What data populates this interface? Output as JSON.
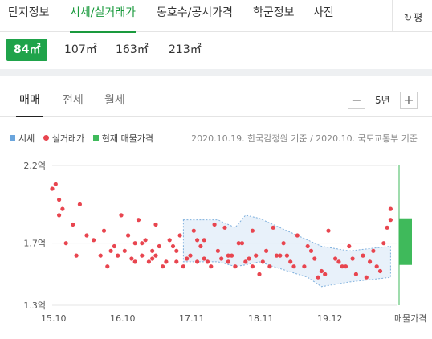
{
  "top_tabs": [
    "단지정보",
    "시세/실거래가",
    "동호수/공시가격",
    "학군정보",
    "사진"
  ],
  "active_top_tab": 1,
  "unit_toggle": "평",
  "areas": [
    "84㎡",
    "107㎡",
    "163㎡",
    "213㎡"
  ],
  "active_area": 0,
  "period_tabs": [
    "매매",
    "전세",
    "월세"
  ],
  "active_period_tab": 0,
  "range": {
    "minus": "−",
    "value": "5년",
    "plus": "+"
  },
  "legend": {
    "market": "시세",
    "actual": "실거래가",
    "listing": "현재 매물가격"
  },
  "source": "2020.10.19. 한국감정원 기준 / 2020.10. 국토교통부 기준",
  "colors": {
    "accent": "#1a9a3d",
    "market_band": "#d8e8f7",
    "market_line": "#7fb0dd",
    "actual_dot": "#e8454f",
    "listing": "#3fba5b"
  },
  "chart_data": {
    "type": "scatter",
    "ylim": [
      1.3,
      2.2
    ],
    "y_ticks": [
      "2.2억",
      "1.7억",
      "1.3억"
    ],
    "x_ticks": [
      "15.10",
      "16.10",
      "17.11",
      "18.11",
      "19.12"
    ],
    "listing_label": "매물가격",
    "listing_range": [
      1.56,
      1.86
    ],
    "market_band": {
      "x": [
        17.7,
        18.2,
        18.45,
        18.6,
        18.8,
        19.0,
        19.5,
        19.7,
        20.1,
        20.7
      ],
      "upper": [
        1.85,
        1.85,
        1.8,
        1.88,
        1.86,
        1.82,
        1.72,
        1.68,
        1.65,
        1.68
      ],
      "lower": [
        1.58,
        1.58,
        1.55,
        1.56,
        1.58,
        1.55,
        1.48,
        1.42,
        1.45,
        1.48
      ]
    },
    "actual_trades": {
      "x": [
        15.8,
        15.85,
        15.9,
        15.95,
        16.1,
        16.2,
        16.4,
        16.55,
        16.65,
        16.75,
        16.8,
        16.9,
        17.0,
        17.05,
        17.1,
        17.15,
        17.25,
        17.3,
        17.35,
        17.45,
        17.5,
        17.6,
        17.65,
        17.7,
        17.8,
        17.85,
        17.9,
        17.95,
        18.0,
        18.1,
        18.15,
        18.25,
        18.3,
        18.35,
        18.45,
        18.55,
        18.6,
        18.7,
        18.75,
        18.8,
        18.9,
        18.95,
        19.0,
        19.05,
        19.15,
        19.25,
        19.35,
        19.45,
        19.5,
        19.6,
        19.7,
        19.8,
        19.9,
        20.0,
        20.1,
        20.2,
        20.3,
        20.4,
        20.5,
        20.6,
        20.7,
        15.9,
        16.0,
        16.3,
        16.5,
        16.7,
        16.85,
        16.95,
        17.1,
        17.2,
        17.3,
        17.4,
        17.55,
        17.75,
        17.9,
        18.05,
        18.2,
        18.4,
        18.5,
        18.65,
        18.85,
        19.1,
        19.3,
        19.55,
        19.75,
        19.95,
        20.15,
        20.35,
        20.55,
        20.65,
        16.15,
        16.6,
        17.0,
        17.25,
        17.6,
        18.0,
        18.35,
        18.7,
        19.2,
        19.65,
        20.05,
        20.45,
        20.7
      ],
      "y": [
        2.05,
        2.08,
        1.88,
        1.92,
        1.82,
        1.95,
        1.72,
        1.78,
        1.65,
        1.62,
        1.88,
        1.75,
        1.7,
        1.85,
        1.62,
        1.72,
        1.6,
        1.82,
        1.68,
        1.58,
        1.72,
        1.65,
        1.75,
        1.55,
        1.62,
        1.78,
        1.58,
        1.68,
        1.72,
        1.55,
        1.82,
        1.6,
        1.8,
        1.62,
        1.55,
        1.7,
        1.58,
        1.78,
        1.62,
        1.5,
        1.65,
        1.55,
        1.8,
        1.62,
        1.7,
        1.58,
        1.75,
        1.55,
        1.68,
        1.6,
        1.52,
        1.78,
        1.6,
        1.55,
        1.68,
        1.5,
        1.62,
        1.58,
        1.55,
        1.7,
        1.92,
        1.98,
        1.7,
        1.75,
        1.62,
        1.68,
        1.65,
        1.6,
        1.7,
        1.58,
        1.62,
        1.55,
        1.68,
        1.6,
        1.72,
        1.58,
        1.65,
        1.62,
        1.7,
        1.6,
        1.58,
        1.62,
        1.55,
        1.65,
        1.5,
        1.58,
        1.6,
        1.48,
        1.52,
        1.8,
        1.62,
        1.55,
        1.58,
        1.65,
        1.58,
        1.6,
        1.58,
        1.55,
        1.62,
        1.48,
        1.55,
        1.65,
        1.85
      ]
    }
  }
}
